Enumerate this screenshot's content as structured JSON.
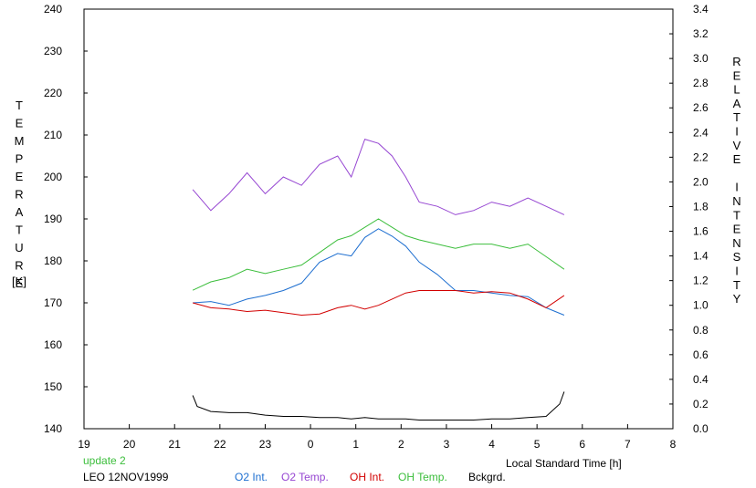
{
  "chart_data": {
    "type": "line",
    "xlabel": "Local Standard Time [h]",
    "ylabel_left": "TEMPERATURE",
    "ylabel_left_unit": "[K]",
    "ylabel_right": "RELATIVE INTENSITY",
    "left_ticks": [
      "240",
      "230",
      "220",
      "210",
      "200",
      "190",
      "180",
      "170",
      "160",
      "150",
      "140"
    ],
    "right_ticks": [
      "3.4",
      "3.2",
      "3.0",
      "2.8",
      "2.6",
      "2.4",
      "2.2",
      "2.0",
      "1.8",
      "1.6",
      "1.4",
      "1.2",
      "1.0",
      "0.8",
      "0.6",
      "0.4",
      "0.2",
      "0.0"
    ],
    "x_ticks": [
      "19",
      "20",
      "21",
      "22",
      "23",
      "0",
      "1",
      "2",
      "3",
      "4",
      "5",
      "6",
      "7",
      "8"
    ],
    "xlim": [
      19,
      32
    ],
    "ylim_left": [
      140,
      240
    ],
    "ylim_right": [
      0,
      3.4
    ],
    "grid": false,
    "notes": {
      "update": "update 2",
      "site_date": "LEO 12NOV1999"
    },
    "series": [
      {
        "name": "O2 Int.",
        "axis": "right",
        "color": "#1e6fd0",
        "x": [
          21.4,
          21.8,
          22.2,
          22.6,
          23.0,
          23.4,
          23.8,
          24.2,
          24.6,
          24.9,
          25.2,
          25.5,
          25.8,
          26.1,
          26.4,
          26.8,
          27.2,
          27.6,
          28.0,
          28.4,
          28.8,
          29.2,
          29.6
        ],
        "y": [
          1.02,
          1.03,
          1.0,
          1.05,
          1.08,
          1.12,
          1.18,
          1.35,
          1.42,
          1.4,
          1.55,
          1.62,
          1.56,
          1.48,
          1.35,
          1.25,
          1.12,
          1.12,
          1.1,
          1.08,
          1.07,
          0.98,
          0.92
        ]
      },
      {
        "name": "O2 Temp.",
        "axis": "left",
        "color": "#9646d2",
        "x": [
          21.4,
          21.8,
          22.2,
          22.6,
          23.0,
          23.4,
          23.8,
          24.2,
          24.6,
          24.9,
          25.2,
          25.5,
          25.8,
          26.1,
          26.4,
          26.8,
          27.2,
          27.6,
          28.0,
          28.4,
          28.8,
          29.2,
          29.6
        ],
        "y": [
          197,
          192,
          196,
          201,
          196,
          200,
          198,
          203,
          205,
          200,
          209,
          208,
          205,
          200,
          194,
          193,
          191,
          192,
          194,
          193,
          195,
          193,
          191
        ]
      },
      {
        "name": "OH Int.",
        "axis": "right",
        "color": "#d20000",
        "x": [
          21.4,
          21.8,
          22.2,
          22.6,
          23.0,
          23.4,
          23.8,
          24.2,
          24.6,
          24.9,
          25.2,
          25.5,
          25.8,
          26.1,
          26.4,
          26.8,
          27.2,
          27.6,
          28.0,
          28.4,
          28.8,
          29.2,
          29.6
        ],
        "y": [
          1.02,
          0.98,
          0.97,
          0.95,
          0.96,
          0.94,
          0.92,
          0.93,
          0.98,
          1.0,
          0.97,
          1.0,
          1.05,
          1.1,
          1.12,
          1.12,
          1.12,
          1.1,
          1.11,
          1.1,
          1.05,
          0.98,
          1.08
        ]
      },
      {
        "name": "OH Temp.",
        "axis": "left",
        "color": "#3cbe3c",
        "x": [
          21.4,
          21.8,
          22.2,
          22.6,
          23.0,
          23.4,
          23.8,
          24.2,
          24.6,
          24.9,
          25.2,
          25.5,
          25.8,
          26.1,
          26.4,
          26.8,
          27.2,
          27.6,
          28.0,
          28.4,
          28.8,
          29.2,
          29.6
        ],
        "y": [
          173,
          175,
          176,
          178,
          177,
          178,
          179,
          182,
          185,
          186,
          188,
          190,
          188,
          186,
          185,
          184,
          183,
          184,
          184,
          183,
          184,
          181,
          178
        ]
      },
      {
        "name": "Bckgrd.",
        "axis": "right",
        "color": "#000000",
        "x": [
          21.4,
          21.5,
          21.8,
          22.2,
          22.6,
          23.0,
          23.4,
          23.8,
          24.2,
          24.6,
          24.9,
          25.2,
          25.5,
          25.8,
          26.1,
          26.4,
          26.8,
          27.2,
          27.6,
          28.0,
          28.4,
          28.8,
          29.2,
          29.5,
          29.6
        ],
        "y": [
          0.27,
          0.18,
          0.14,
          0.13,
          0.13,
          0.11,
          0.1,
          0.1,
          0.09,
          0.09,
          0.08,
          0.09,
          0.08,
          0.08,
          0.08,
          0.07,
          0.07,
          0.07,
          0.07,
          0.08,
          0.08,
          0.09,
          0.1,
          0.2,
          0.3
        ]
      }
    ]
  }
}
